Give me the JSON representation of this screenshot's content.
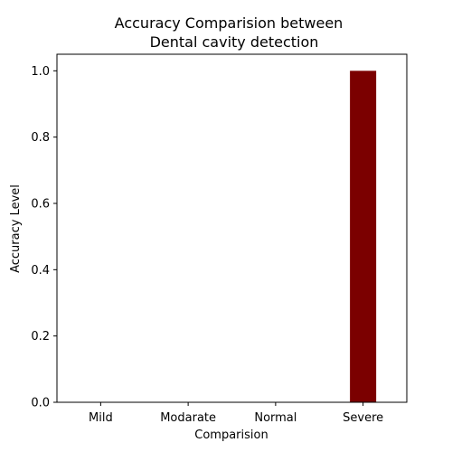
{
  "chart_data": {
    "type": "bar",
    "title_lines": [
      "Accuracy Comparision between",
      "Dental cavity detection"
    ],
    "xlabel": "Comparision",
    "ylabel": "Accuracy Level",
    "categories": [
      "Mild",
      "Modarate",
      "Normal",
      "Severe"
    ],
    "values": [
      0.0,
      0.0,
      0.0,
      1.0
    ],
    "ylim": [
      0,
      1.05
    ],
    "yticks": [
      "0.0",
      "0.2",
      "0.4",
      "0.6",
      "0.8",
      "1.0"
    ],
    "bar_color": "#7b0000",
    "grid": false,
    "legend": "none"
  }
}
